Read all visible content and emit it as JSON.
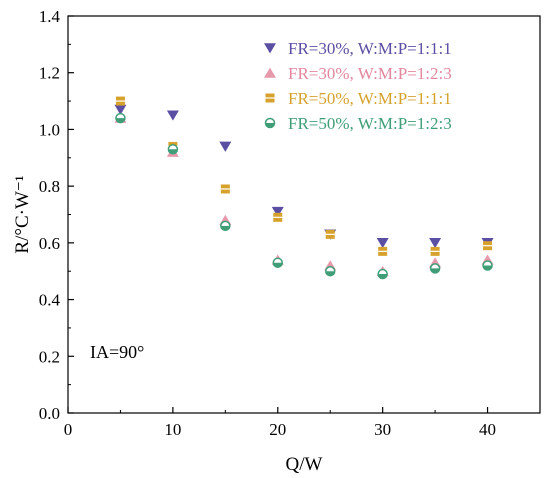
{
  "chart_data": {
    "type": "scatter",
    "title": "",
    "xlabel": "Q/W",
    "ylabel": "R/°C·W⁻¹",
    "xlim": [
      0,
      45
    ],
    "ylim": [
      0.0,
      1.4
    ],
    "xticks": [
      0,
      10,
      20,
      30,
      40
    ],
    "yticks": [
      0.0,
      0.2,
      0.4,
      0.6,
      0.8,
      1.0,
      1.2,
      1.4
    ],
    "xtick_labels": [
      "0",
      "10",
      "20",
      "30",
      "40"
    ],
    "ytick_labels": [
      "0.0",
      "0.2",
      "0.4",
      "0.6",
      "0.8",
      "1.0",
      "1.2",
      "1.4"
    ],
    "grid": false,
    "legend_position": "top-right",
    "annotation": "IA=90°",
    "series": [
      {
        "name": "FR=30%, W:M:P=1:1:1",
        "marker": "triangle-down",
        "color": "#5b4fa3",
        "x": [
          5,
          10,
          15,
          20,
          25,
          30,
          35,
          40
        ],
        "y": [
          1.07,
          1.05,
          0.94,
          0.71,
          0.63,
          0.6,
          0.6,
          0.6
        ]
      },
      {
        "name": "FR=30%, W:M:P=1:2:3",
        "marker": "triangle-up",
        "color": "#e3879e",
        "x": [
          5,
          10,
          15,
          20,
          25,
          30,
          35,
          40
        ],
        "y": [
          1.04,
          0.92,
          0.68,
          0.54,
          0.52,
          0.5,
          0.53,
          0.54
        ]
      },
      {
        "name": "FR=50%, W:M:P=1:1:1",
        "marker": "square",
        "color": "#d6a22c",
        "x": [
          5,
          10,
          15,
          20,
          25,
          30,
          35,
          40
        ],
        "y": [
          1.1,
          0.94,
          0.79,
          0.69,
          0.63,
          0.57,
          0.57,
          0.59
        ]
      },
      {
        "name": "FR=50%, W:M:P=1:2:3",
        "marker": "circle",
        "color": "#3f9e77",
        "x": [
          5,
          10,
          15,
          20,
          25,
          30,
          35,
          40
        ],
        "y": [
          1.04,
          0.93,
          0.66,
          0.53,
          0.5,
          0.49,
          0.51,
          0.52
        ]
      }
    ]
  }
}
